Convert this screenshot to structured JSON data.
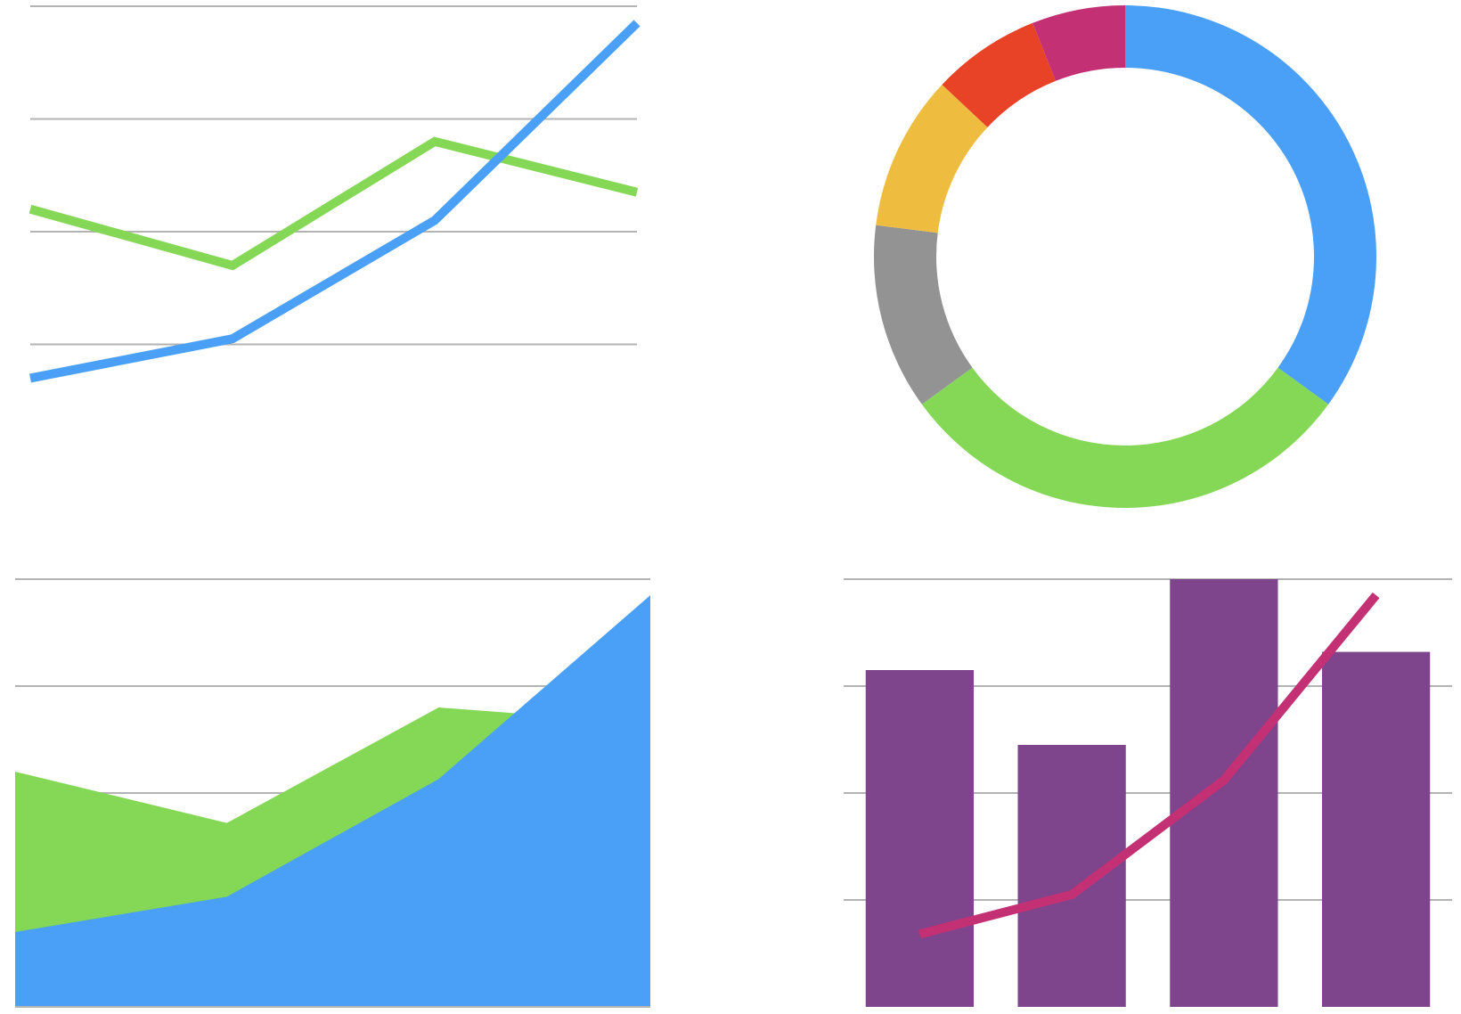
{
  "colors": {
    "blue": "#4aa0f7",
    "green": "#84d856",
    "yellow": "#eebd40",
    "red": "#e84227",
    "magenta": "#c33074",
    "gray": "#939393",
    "purple": "#7f458c",
    "grid": "#b3b3b3"
  },
  "chart_data": [
    {
      "type": "line",
      "categories": [
        "",
        "",
        "",
        ""
      ],
      "y_ticks": [
        "",
        "",
        "",
        "",
        ""
      ],
      "ylim": [
        0,
        4
      ],
      "grid": true,
      "series": [
        {
          "color": "#84d856",
          "values": [
            2.2,
            1.7,
            2.8,
            2.35
          ]
        },
        {
          "color": "#4aa0f7",
          "values": [
            0.7,
            1.05,
            2.1,
            3.85
          ]
        }
      ]
    },
    {
      "type": "pie",
      "donut": true,
      "slices": [
        {
          "color": "#4aa0f7",
          "value": 35
        },
        {
          "color": "#84d856",
          "value": 30
        },
        {
          "color": "#939393",
          "value": 12
        },
        {
          "color": "#eebd40",
          "value": 10
        },
        {
          "color": "#e84227",
          "value": 7
        },
        {
          "color": "#c33074",
          "value": 6
        }
      ]
    },
    {
      "type": "area",
      "stacked": false,
      "categories": [
        "",
        "",
        "",
        ""
      ],
      "y_ticks": [
        "",
        "",
        "",
        "",
        ""
      ],
      "ylim": [
        0,
        4
      ],
      "grid": true,
      "series": [
        {
          "color": "#84d856",
          "values": [
            2.2,
            1.72,
            2.8,
            2.65
          ]
        },
        {
          "color": "#4aa0f7",
          "values": [
            0.7,
            1.03,
            2.13,
            3.85
          ]
        }
      ]
    },
    {
      "type": "bar",
      "categories": [
        "",
        "",
        "",
        ""
      ],
      "y_ticks": [
        "",
        "",
        "",
        "",
        ""
      ],
      "ylim": [
        0,
        4
      ],
      "grid": true,
      "bars": {
        "color": "#7f458c",
        "values": [
          3.15,
          2.45,
          4.0,
          3.32
        ]
      },
      "line": {
        "color": "#c33074",
        "values": [
          0.68,
          1.05,
          2.12,
          3.85
        ]
      }
    }
  ]
}
